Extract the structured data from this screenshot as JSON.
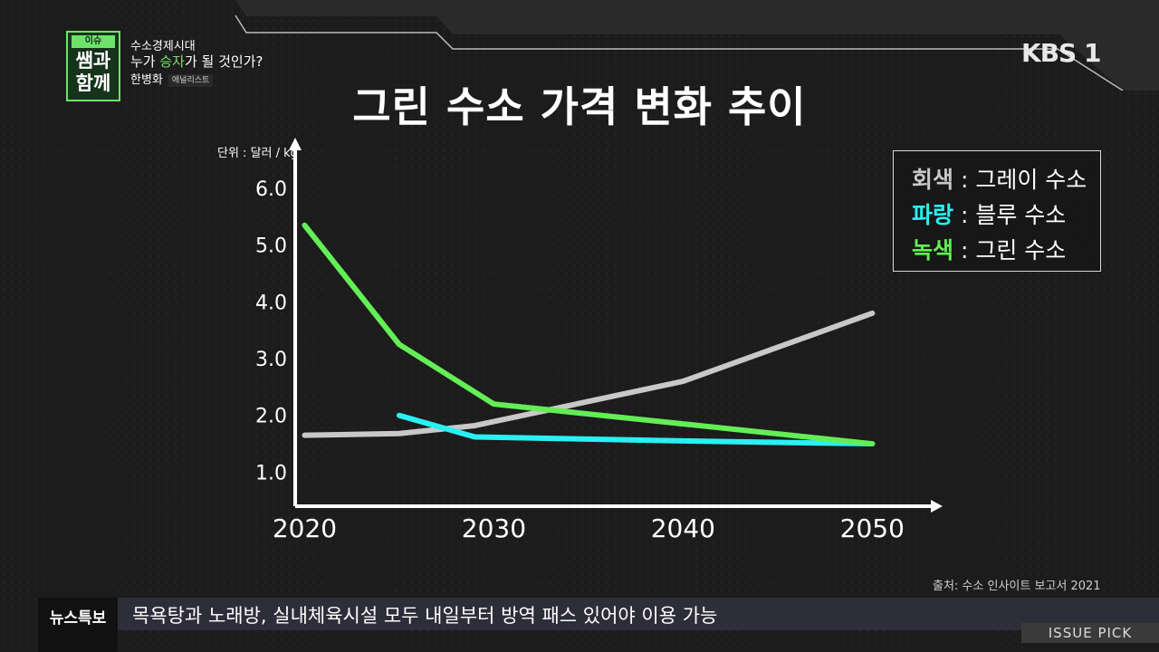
{
  "header": {
    "badge_top": "이슈 PICK",
    "badge_main": "쌤과 함께",
    "topic_sub": "수소경제시대",
    "topic_main_a": "누가 ",
    "topic_main_hl": "승자",
    "topic_main_b": "가 될 것인가?",
    "guest_name": "한병화",
    "guest_role": "애널리스트",
    "logo": "KBS 1"
  },
  "legend": {
    "gray_key": "회색",
    "gray_label": " : 그레이 수소",
    "blue_key": "파랑",
    "blue_label": " : 블루 수소",
    "green_key": "녹색",
    "green_label": " : 그린 수소"
  },
  "source": "출처: 수소 인사이트 보고서 2021",
  "ticker": {
    "label": "뉴스특보",
    "text": "목욕탕과 노래방, 실내체육시설 모두 내일부터 방역 패스 있어야 이용 가능"
  },
  "issue_tag": "ISSUE PICK",
  "colors": {
    "gray": "#c8c8c8",
    "blue": "#29f0f2",
    "green": "#63ee55",
    "accent": "#6ee36a"
  },
  "chart_data": {
    "type": "line",
    "title": "그린 수소 가격 변화 추이",
    "unit_label": "단위 : 달러 / kg",
    "x_ticks": [
      "2020",
      "2030",
      "2040",
      "2050"
    ],
    "y_ticks": [
      "1.0",
      "2.0",
      "3.0",
      "4.0",
      "5.0",
      "6.0"
    ],
    "xlim": [
      2019.5,
      2053
    ],
    "ylim": [
      0.4,
      6.0
    ],
    "series": [
      {
        "name": "그레이 수소",
        "color": "#c8c8c8",
        "x": [
          2020,
          2025,
          2029,
          2040,
          2050
        ],
        "y": [
          1.65,
          1.68,
          1.82,
          2.6,
          3.8
        ]
      },
      {
        "name": "블루 수소",
        "color": "#29f0f2",
        "x": [
          2025,
          2029,
          2040,
          2050
        ],
        "y": [
          2.0,
          1.62,
          1.55,
          1.5
        ]
      },
      {
        "name": "그린 수소",
        "color": "#63ee55",
        "x": [
          2020,
          2025,
          2030,
          2040,
          2050
        ],
        "y": [
          5.35,
          3.25,
          2.2,
          1.85,
          1.5
        ]
      }
    ]
  }
}
